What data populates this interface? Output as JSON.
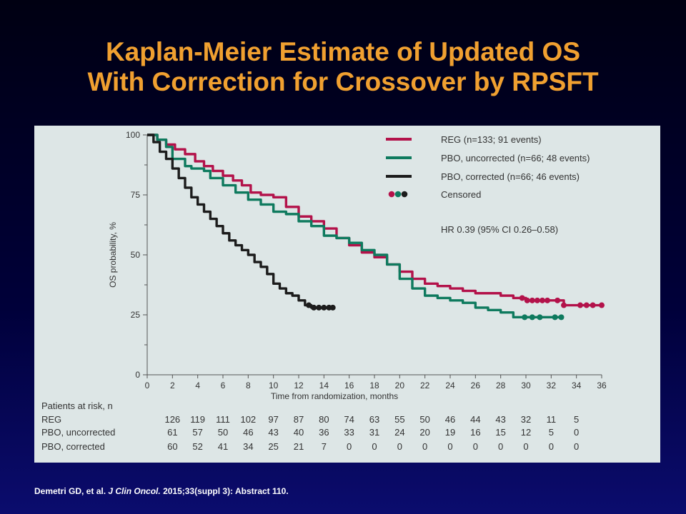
{
  "title": {
    "line1": "Kaplan-Meier Estimate of Updated OS",
    "line2": "With Correction for Crossover by RPSFT"
  },
  "citation": {
    "authors": "Demetri GD, et al.",
    "journal": "J Clin Oncol.",
    "details": "2015;33(suppl 3): Abstract 110."
  },
  "colors": {
    "title": "#f0a030",
    "panel": "#dde6e6",
    "reg": "#b3124a",
    "pbo_uncorrected": "#0e7a5e",
    "pbo_corrected": "#1c1c1c",
    "axis": "#555555",
    "text": "#333333"
  },
  "chart_data": {
    "type": "line",
    "step": true,
    "xlabel": "Time from randomization, months",
    "ylabel": "OS probability, %",
    "xlim": [
      0,
      36
    ],
    "ylim": [
      0,
      100
    ],
    "xticks": [
      0,
      2,
      4,
      6,
      8,
      10,
      12,
      14,
      16,
      18,
      20,
      22,
      24,
      26,
      28,
      30,
      32,
      34,
      36
    ],
    "yticks": [
      0,
      25,
      50,
      75,
      100
    ],
    "annotation": "HR 0.39 (95% CI 0.26–0.58)",
    "censored_label": "Censored",
    "series": [
      {
        "key": "reg",
        "name": "REG (n=133; 91 events)",
        "x": [
          0,
          0.8,
          1.5,
          2.2,
          3,
          3.8,
          4.5,
          5.2,
          6,
          6.8,
          7.5,
          8.2,
          9,
          10,
          11,
          12,
          13,
          14,
          15,
          16,
          17,
          18,
          19,
          20,
          21,
          22,
          23,
          24,
          25,
          26,
          27,
          28,
          29,
          30,
          31,
          32,
          33,
          34,
          35,
          36
        ],
        "y": [
          100,
          98,
          96,
          94,
          92,
          89,
          87,
          85,
          83,
          81,
          79,
          76,
          75,
          74,
          70,
          66,
          64,
          61,
          57,
          54,
          51,
          49,
          46,
          43,
          40,
          38,
          37,
          36,
          35,
          34,
          34,
          33,
          32,
          31,
          31,
          31,
          29,
          29,
          29,
          29
        ],
        "censor_x": [
          29.7,
          30.1,
          30.5,
          30.9,
          31.3,
          31.7,
          32.5,
          33,
          34.3,
          34.8,
          35.3,
          36
        ]
      },
      {
        "key": "pbo_uncorrected",
        "name": "PBO, uncorrected (n=66; 48 events)",
        "x": [
          0,
          0.8,
          1.5,
          2,
          3,
          3.5,
          4.5,
          5,
          6,
          7,
          8,
          9,
          10,
          11,
          12,
          13,
          14,
          15,
          16,
          17,
          18,
          19,
          20,
          21,
          22,
          23,
          24,
          25,
          26,
          27,
          28,
          29,
          30,
          31,
          32,
          33
        ],
        "y": [
          100,
          98,
          95,
          90,
          87,
          86,
          85,
          82,
          79,
          76,
          73,
          71,
          68,
          67,
          64,
          62,
          58,
          57,
          55,
          52,
          50,
          46,
          40,
          36,
          33,
          32,
          31,
          30,
          28,
          27,
          26,
          24,
          24,
          24,
          24,
          24
        ],
        "censor_x": [
          29.9,
          30.5,
          31.1,
          32.3,
          32.8
        ]
      },
      {
        "key": "pbo_corrected",
        "name": "PBO, corrected (n=66; 46 events)",
        "x": [
          0,
          0.5,
          1,
          1.5,
          2,
          2.5,
          3,
          3.5,
          4,
          4.5,
          5,
          5.5,
          6,
          6.5,
          7,
          7.5,
          8,
          8.5,
          9,
          9.5,
          10,
          10.5,
          11,
          11.5,
          12,
          12.5,
          13,
          13.5,
          14,
          14.5
        ],
        "y": [
          100,
          97,
          93,
          90,
          86,
          82,
          78,
          74,
          71,
          68,
          65,
          62,
          59,
          56,
          54,
          52,
          50,
          47,
          45,
          42,
          38,
          36,
          34,
          33,
          31,
          29,
          28,
          28,
          28,
          28
        ],
        "censor_x": [
          12.8,
          13.2,
          13.6,
          14,
          14.4,
          14.7
        ]
      }
    ],
    "risk_table": {
      "header": "Patients at risk, n",
      "times": [
        2,
        4,
        6,
        8,
        10,
        12,
        14,
        16,
        18,
        20,
        22,
        24,
        26,
        28,
        30,
        32,
        34
      ],
      "rows": [
        {
          "label": "REG",
          "values": [
            "126",
            "119",
            "111",
            "102",
            "97",
            "87",
            "80",
            "74",
            "63",
            "55",
            "50",
            "46",
            "44",
            "43",
            "32",
            "11",
            "5"
          ]
        },
        {
          "label": "PBO, uncorrected",
          "values": [
            "61",
            "57",
            "50",
            "46",
            "43",
            "40",
            "36",
            "33",
            "31",
            "24",
            "20",
            "19",
            "16",
            "15",
            "12",
            "5",
            "0"
          ]
        },
        {
          "label": "PBO, corrected",
          "values": [
            "60",
            "52",
            "41",
            "34",
            "25",
            "21",
            "7",
            "0",
            "0",
            "0",
            "0",
            "0",
            "0",
            "0",
            "0",
            "0",
            "0"
          ]
        }
      ]
    }
  }
}
